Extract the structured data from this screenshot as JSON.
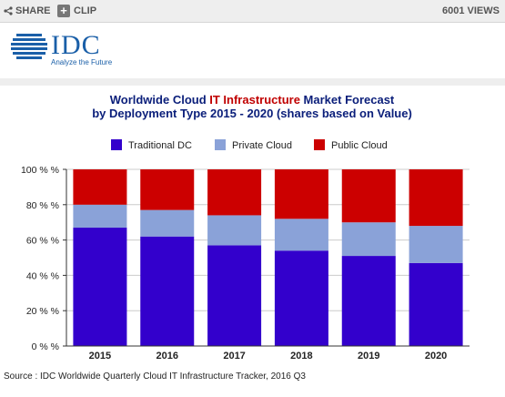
{
  "toolbar": {
    "share_label": "SHARE",
    "clip_label": "CLIP",
    "views_label": "6001 VIEWS"
  },
  "logo": {
    "name": "IDC",
    "tagline": "Analyze the Future"
  },
  "source": "Source : IDC Worldwide Quarterly Cloud IT Infrastructure Tracker, 2016 Q3",
  "colors": {
    "traditional": "#3300cc",
    "private": "#8aa2d8",
    "public": "#cc0000",
    "brand": "#1a5fa8"
  },
  "chart_data": {
    "type": "bar",
    "stacked": true,
    "title_line1_a": "Worldwide Cloud ",
    "title_line1_b": "IT Infrastructure",
    "title_line1_c": " Market Forecast",
    "title_line2": "by Deployment Type  2015 - 2020 (shares based on Value)",
    "categories": [
      "2015",
      "2016",
      "2017",
      "2018",
      "2019",
      "2020"
    ],
    "series": [
      {
        "name": "Traditional DC",
        "values": [
          67,
          62,
          57,
          54,
          51,
          47
        ]
      },
      {
        "name": "Private Cloud",
        "values": [
          13,
          15,
          17,
          18,
          19,
          21
        ]
      },
      {
        "name": "Public Cloud",
        "values": [
          20,
          23,
          26,
          28,
          30,
          32
        ]
      }
    ],
    "ylim": [
      0,
      100
    ],
    "yticks": [
      "0 % %",
      "20 % %",
      "40 % %",
      "60 % %",
      "80 % %",
      "100 % %"
    ],
    "grid": true,
    "legend": "top"
  }
}
